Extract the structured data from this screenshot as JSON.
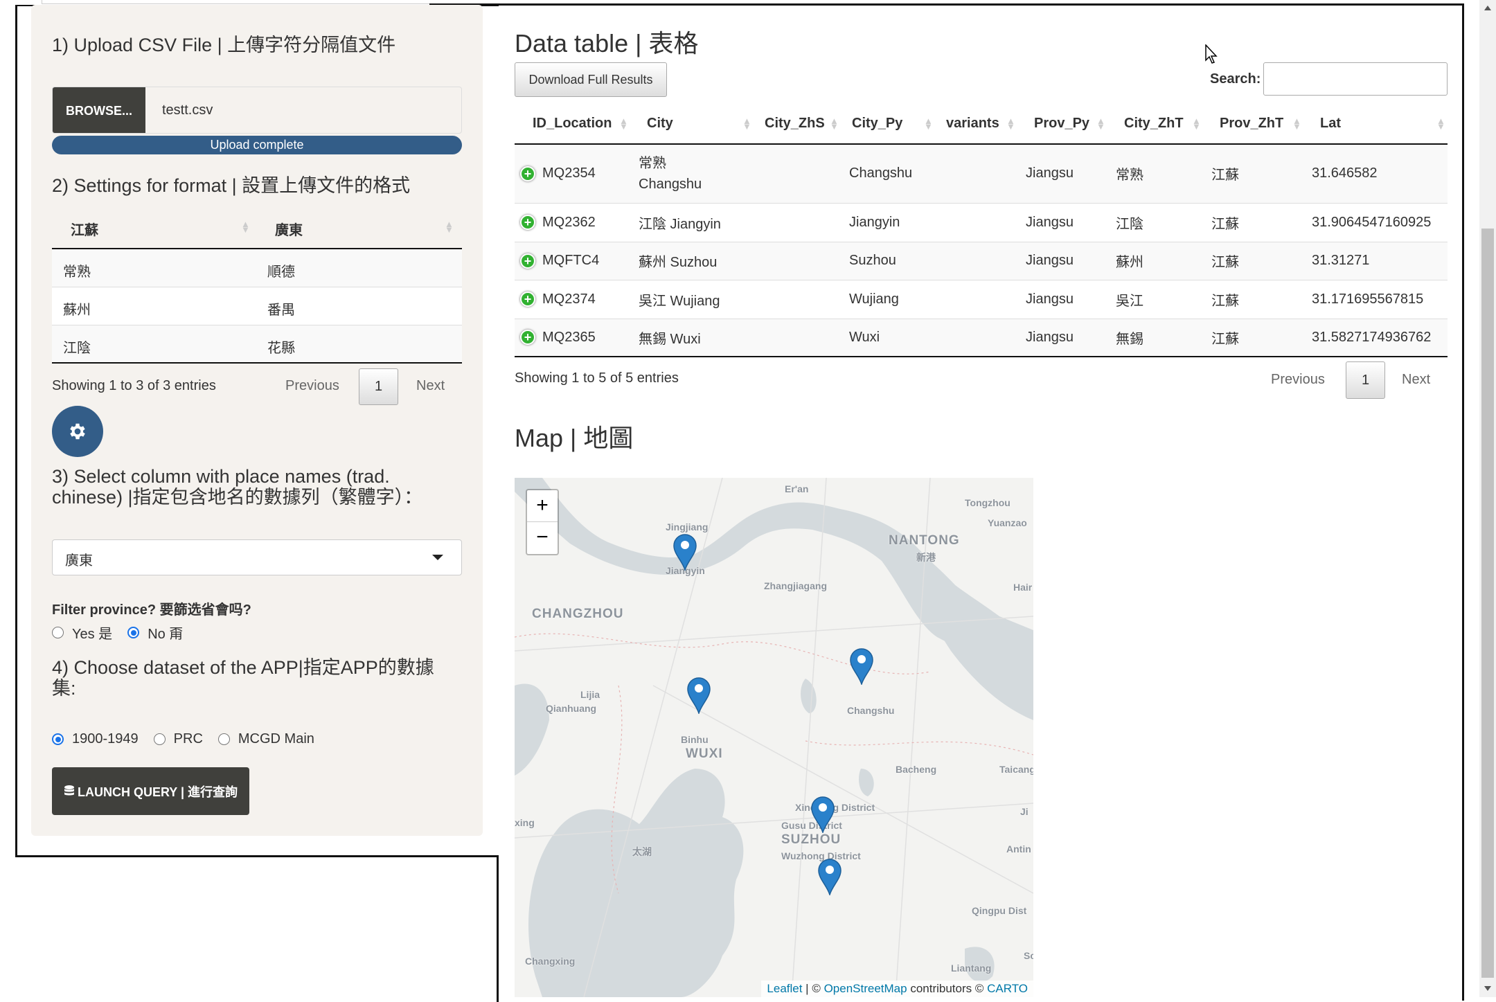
{
  "sidebar": {
    "upload_title": "1) Upload CSV File | 上傳字符分隔值文件",
    "browse_label": "BROWSE...",
    "file_name": "testt.csv",
    "upload_status": "Upload complete",
    "upload_progress": 1.0,
    "settings_title": "2) Settings for format | 設置上傳文件的格式",
    "format_table": {
      "headers": [
        "江蘇",
        "廣東"
      ],
      "rows": [
        [
          "常熟",
          "順德"
        ],
        [
          "蘇州",
          "番禺"
        ],
        [
          "江陰",
          "花縣"
        ]
      ],
      "info": "Showing 1 to 3 of 3 entries",
      "previous": "Previous",
      "page": "1",
      "next": "Next"
    },
    "settings_icon": "gear-icon",
    "column_title": "3) Select column with place names (trad. chinese) |指定包含地名的數據列（繁體字）：",
    "column_selected": "廣東",
    "filter_label": "Filter province? 要篩选省會吗?",
    "filter_options": [
      {
        "label": "Yes 是",
        "checked": false
      },
      {
        "label": "No 甭",
        "checked": true
      }
    ],
    "dataset_title": "4) Choose dataset of the APP|指定APP的數據集:",
    "dataset_options": [
      {
        "label": "1900-1949",
        "checked": true
      },
      {
        "label": "PRC",
        "checked": false
      },
      {
        "label": "MCGD Main",
        "checked": false
      }
    ],
    "launch_label": "LAUNCH QUERY | 進行查詢",
    "launch_icon": "database-icon"
  },
  "datatable": {
    "title": "Data table | 表格",
    "download_label": "Download Full Results",
    "search_label": "Search:",
    "search_value": "",
    "columns": [
      "ID_Location",
      "City",
      "City_ZhS",
      "City_Py",
      "variants",
      "Prov_Py",
      "City_ZhT",
      "Prov_ZhT",
      "Lat"
    ],
    "rows": [
      {
        "id": "MQ2354",
        "city": "常熟 Changshu",
        "zhs": "",
        "py": "Changshu",
        "variants": "",
        "prov_py": "Jiangsu",
        "zht": "常熟",
        "prov_zht": "江蘇",
        "lat": "31.646582"
      },
      {
        "id": "MQ2362",
        "city": "江陰 Jiangyin",
        "zhs": "",
        "py": "Jiangyin",
        "variants": "",
        "prov_py": "Jiangsu",
        "zht": "江陰",
        "prov_zht": "江蘇",
        "lat": "31.9064547160925"
      },
      {
        "id": "MQFTC4",
        "city": "蘇州 Suzhou",
        "zhs": "",
        "py": "Suzhou",
        "variants": "",
        "prov_py": "Jiangsu",
        "zht": "蘇州",
        "prov_zht": "江蘇",
        "lat": "31.31271"
      },
      {
        "id": "MQ2374",
        "city": "吳江 Wujiang",
        "zhs": "",
        "py": "Wujiang",
        "variants": "",
        "prov_py": "Jiangsu",
        "zht": "吳江",
        "prov_zht": "江蘇",
        "lat": "31.171695567815"
      },
      {
        "id": "MQ2365",
        "city": "無錫 Wuxi",
        "zhs": "",
        "py": "Wuxi",
        "variants": "",
        "prov_py": "Jiangsu",
        "zht": "無錫",
        "prov_zht": "江蘇",
        "lat": "31.5827174936762"
      }
    ],
    "info": "Showing 1 to 5 of 5 entries",
    "previous": "Previous",
    "page": "1",
    "next": "Next"
  },
  "map": {
    "title": "Map | 地圖",
    "zoom_in": "+",
    "zoom_out": "−",
    "labels": [
      "Er'an",
      "Tongzhou",
      "Yuanzao",
      "NANTONG",
      "新港",
      "Jingjiang",
      "Jiangyin",
      "Zhangjiagang",
      "Hair",
      "CHANGZHOU",
      "Lijia",
      "Qianhuang",
      "Changshu",
      "Binhu",
      "WUXI",
      "Bacheng",
      "Taicang",
      "Xincheng District",
      "Gusu District",
      "SUZHOU",
      "Wuzhong District",
      "太湖",
      "xing",
      "Antin",
      "Ji",
      "Qingpu Dist",
      "Changxing",
      "Liantang",
      "Sc"
    ],
    "markers": [
      "Jiangyin",
      "Wuxi",
      "Changshu",
      "Suzhou",
      "Wujiang"
    ],
    "marker_color": "#2a81cb",
    "attribution": {
      "leaflet": "Leaflet",
      "sep": " | © ",
      "osm": "OpenStreetMap",
      "contrib": " contributors © ",
      "carto": "CARTO"
    }
  },
  "colors": {
    "accent": "#335d88",
    "dark_button": "#40403c",
    "well": "#f5f2ee"
  }
}
